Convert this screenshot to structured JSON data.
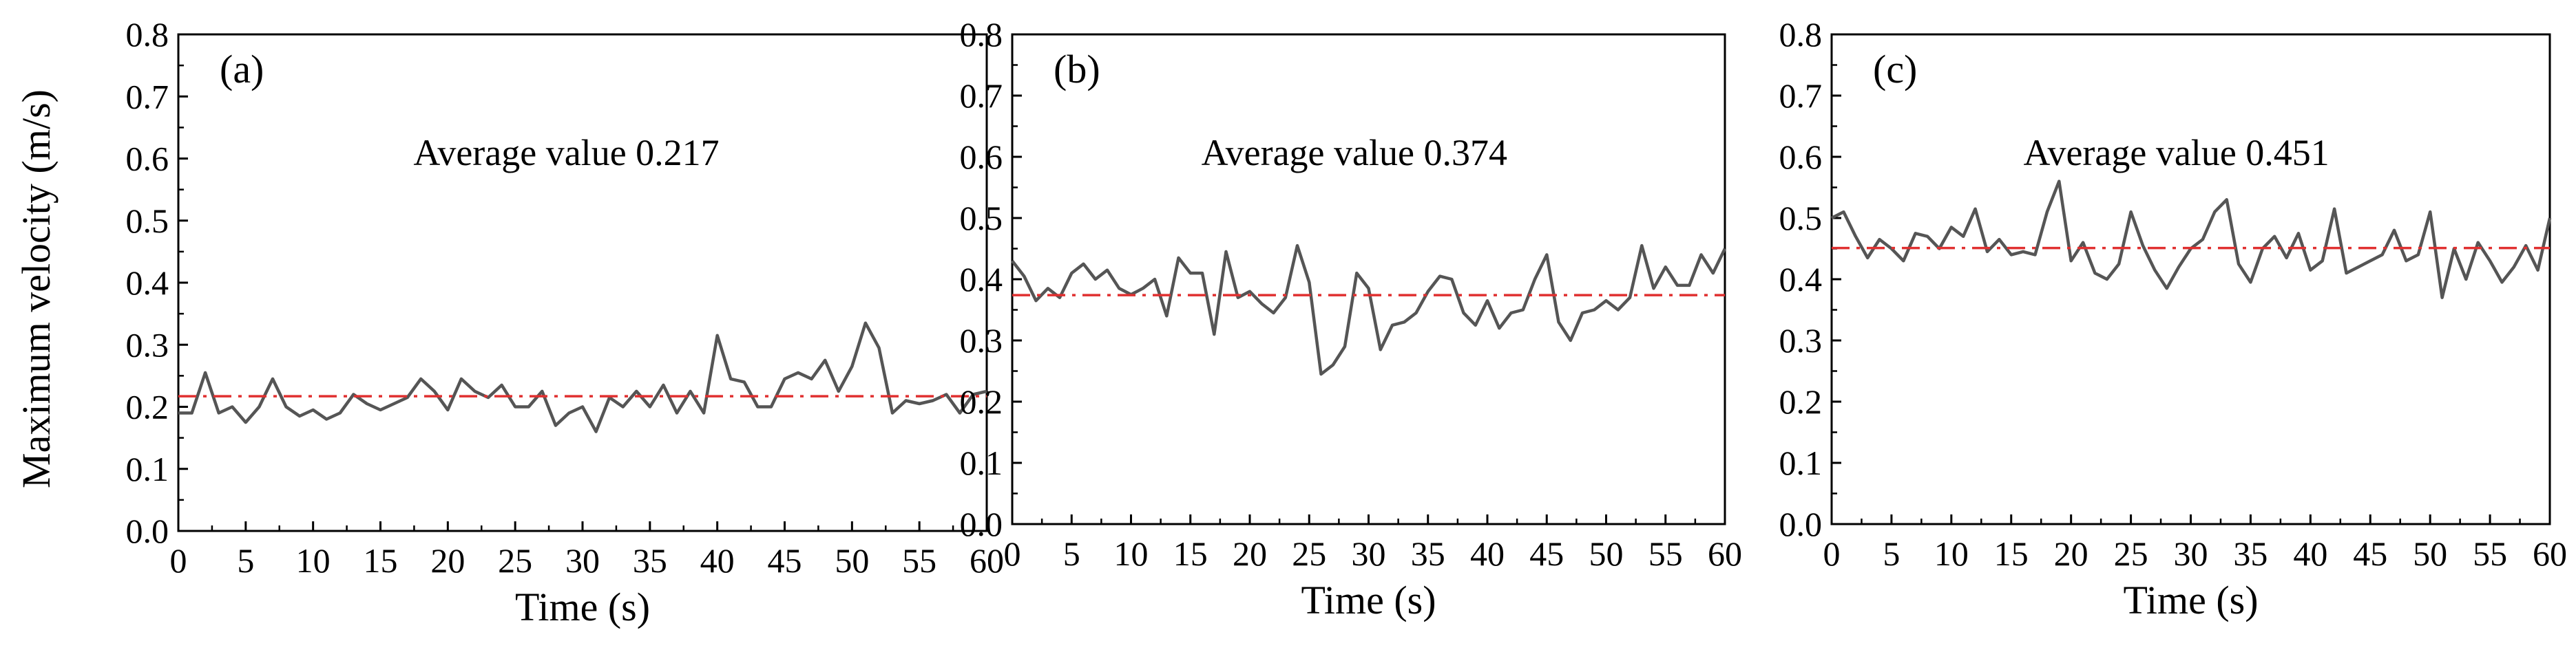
{
  "figure": {
    "ylabel": "Maximum velocity (m/s)"
  },
  "chart_data": [
    {
      "type": "line",
      "panel_label": "(a)",
      "annotation": "Average value 0.217",
      "average": 0.217,
      "xlabel": "Time (s)",
      "xlim": [
        0,
        60
      ],
      "ylim": [
        0.0,
        0.8
      ],
      "x_ticks": [
        0,
        5,
        10,
        15,
        20,
        25,
        30,
        35,
        40,
        45,
        50,
        55,
        60
      ],
      "y_ticks": [
        "0.0",
        "0.1",
        "0.2",
        "0.3",
        "0.4",
        "0.5",
        "0.6",
        "0.7",
        "0.8"
      ],
      "series": [
        {
          "name": "velocity",
          "color": "#555555",
          "x": [
            0,
            1,
            2,
            3,
            4,
            5,
            6,
            7,
            8,
            9,
            10,
            11,
            12,
            13,
            14,
            15,
            16,
            17,
            18,
            19,
            20,
            21,
            22,
            23,
            24,
            25,
            26,
            27,
            28,
            29,
            30,
            31,
            32,
            33,
            34,
            35,
            36,
            37,
            38,
            39,
            40,
            41,
            42,
            43,
            44,
            45,
            46,
            47,
            48,
            49,
            50,
            51,
            52,
            53,
            54,
            55,
            56,
            57,
            58,
            59,
            60
          ],
          "values": [
            0.19,
            0.19,
            0.255,
            0.19,
            0.2,
            0.175,
            0.2,
            0.245,
            0.2,
            0.185,
            0.195,
            0.18,
            0.19,
            0.22,
            0.205,
            0.195,
            0.205,
            0.215,
            0.245,
            0.225,
            0.195,
            0.245,
            0.225,
            0.215,
            0.235,
            0.2,
            0.2,
            0.225,
            0.17,
            0.19,
            0.2,
            0.16,
            0.215,
            0.2,
            0.225,
            0.2,
            0.235,
            0.19,
            0.225,
            0.19,
            0.315,
            0.245,
            0.24,
            0.2,
            0.2,
            0.245,
            0.255,
            0.245,
            0.275,
            0.225,
            0.265,
            0.335,
            0.295,
            0.19,
            0.21,
            0.205,
            0.21,
            0.22,
            0.19,
            0.22,
            0.225
          ]
        },
        {
          "name": "average",
          "color": "#e03030",
          "values": [
            0.217,
            0.217
          ]
        }
      ]
    },
    {
      "type": "line",
      "panel_label": "(b)",
      "annotation": "Average value 0.374",
      "average": 0.374,
      "xlabel": "Time (s)",
      "xlim": [
        0,
        60
      ],
      "ylim": [
        0.0,
        0.8
      ],
      "x_ticks": [
        0,
        5,
        10,
        15,
        20,
        25,
        30,
        35,
        40,
        45,
        50,
        55,
        60
      ],
      "y_ticks": [
        "0.0",
        "0.1",
        "0.2",
        "0.3",
        "0.4",
        "0.5",
        "0.6",
        "0.7",
        "0.8"
      ],
      "series": [
        {
          "name": "velocity",
          "color": "#555555",
          "x": [
            0,
            1,
            2,
            3,
            4,
            5,
            6,
            7,
            8,
            9,
            10,
            11,
            12,
            13,
            14,
            15,
            16,
            17,
            18,
            19,
            20,
            21,
            22,
            23,
            24,
            25,
            26,
            27,
            28,
            29,
            30,
            31,
            32,
            33,
            34,
            35,
            36,
            37,
            38,
            39,
            40,
            41,
            42,
            43,
            44,
            45,
            46,
            47,
            48,
            49,
            50,
            51,
            52,
            53,
            54,
            55,
            56,
            57,
            58,
            59,
            60
          ],
          "values": [
            0.43,
            0.405,
            0.365,
            0.385,
            0.37,
            0.41,
            0.425,
            0.4,
            0.415,
            0.385,
            0.375,
            0.385,
            0.4,
            0.34,
            0.435,
            0.41,
            0.41,
            0.31,
            0.445,
            0.37,
            0.38,
            0.36,
            0.345,
            0.37,
            0.455,
            0.395,
            0.245,
            0.26,
            0.29,
            0.41,
            0.385,
            0.285,
            0.325,
            0.33,
            0.345,
            0.38,
            0.405,
            0.4,
            0.345,
            0.325,
            0.365,
            0.32,
            0.345,
            0.35,
            0.4,
            0.44,
            0.33,
            0.3,
            0.345,
            0.35,
            0.365,
            0.35,
            0.37,
            0.455,
            0.385,
            0.42,
            0.39,
            0.39,
            0.44,
            0.41,
            0.45
          ]
        },
        {
          "name": "average",
          "color": "#e03030",
          "values": [
            0.374,
            0.374
          ]
        }
      ]
    },
    {
      "type": "line",
      "panel_label": "(c)",
      "annotation": "Average value 0.451",
      "average": 0.451,
      "xlabel": "Time (s)",
      "xlim": [
        0,
        60
      ],
      "ylim": [
        0.0,
        0.8
      ],
      "x_ticks": [
        0,
        5,
        10,
        15,
        20,
        25,
        30,
        35,
        40,
        45,
        50,
        55,
        60
      ],
      "y_ticks": [
        "0.0",
        "0.1",
        "0.2",
        "0.3",
        "0.4",
        "0.5",
        "0.6",
        "0.7",
        "0.8"
      ],
      "series": [
        {
          "name": "velocity",
          "color": "#555555",
          "x": [
            0,
            1,
            2,
            3,
            4,
            5,
            6,
            7,
            8,
            9,
            10,
            11,
            12,
            13,
            14,
            15,
            16,
            17,
            18,
            19,
            20,
            21,
            22,
            23,
            24,
            25,
            26,
            27,
            28,
            29,
            30,
            31,
            32,
            33,
            34,
            35,
            36,
            37,
            38,
            39,
            40,
            41,
            42,
            43,
            44,
            45,
            46,
            47,
            48,
            49,
            50,
            51,
            52,
            53,
            54,
            55,
            56,
            57,
            58,
            59,
            60
          ],
          "values": [
            0.5,
            0.51,
            0.47,
            0.435,
            0.465,
            0.45,
            0.43,
            0.475,
            0.47,
            0.45,
            0.485,
            0.47,
            0.515,
            0.445,
            0.465,
            0.44,
            0.445,
            0.44,
            0.51,
            0.56,
            0.43,
            0.46,
            0.41,
            0.4,
            0.425,
            0.51,
            0.455,
            0.415,
            0.385,
            0.42,
            0.45,
            0.465,
            0.51,
            0.53,
            0.425,
            0.395,
            0.45,
            0.47,
            0.435,
            0.475,
            0.415,
            0.43,
            0.515,
            0.41,
            0.42,
            0.43,
            0.44,
            0.48,
            0.43,
            0.44,
            0.51,
            0.37,
            0.45,
            0.4,
            0.46,
            0.43,
            0.395,
            0.42,
            0.455,
            0.415,
            0.5
          ]
        },
        {
          "name": "average",
          "color": "#e03030",
          "values": [
            0.451,
            0.451
          ]
        }
      ]
    }
  ]
}
